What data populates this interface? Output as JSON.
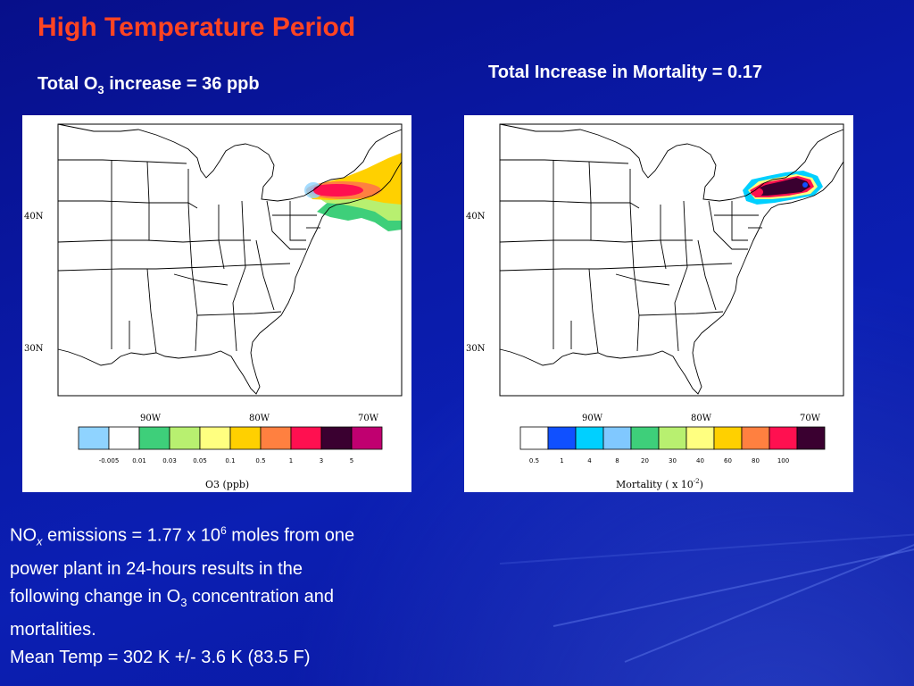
{
  "slide": {
    "title": "High Temperature Period",
    "left_heading": {
      "text": "Total O",
      "sub": "3",
      "rest": " increase = 36 ppb"
    },
    "right_heading": "Total Increase in Mortality = 0.17",
    "body": {
      "line1": {
        "a": "NO",
        "b": "x",
        "c": " emissions = 1.77 x 10",
        "d": "6",
        "e": " moles from one"
      },
      "line2": "power plant in 24-hours results in the",
      "line3": {
        "a": "following change in O",
        "b": "3",
        "c": " concentration and"
      },
      "line4": "mortalities.",
      "line5": "Mean Temp = 302 K +/- 3.6 K  (83.5 F)"
    }
  },
  "maps": {
    "lat_labels": [
      "40N",
      "30N"
    ],
    "lon_labels": [
      "90W",
      "80W",
      "70W"
    ],
    "o3": {
      "colorbar_title": "O3 (ppb)",
      "levels": [
        "-0.005",
        "0.01",
        "0.03",
        "0.05",
        "0.1",
        "0.5",
        "1",
        "3",
        "5"
      ],
      "colors": [
        "#8fd3ff",
        "#ffffff",
        "#3ecf7a",
        "#b8f070",
        "#ffff80",
        "#ffd000",
        "#ff8040",
        "#ff1050",
        "#3a0030",
        "#c00070"
      ]
    },
    "mortality": {
      "colorbar_title_main": "Mortality ( x 10",
      "colorbar_title_exp": "-2",
      "colorbar_title_end": ")",
      "levels": [
        "0.5",
        "1",
        "4",
        "8",
        "20",
        "30",
        "40",
        "60",
        "80",
        "100"
      ],
      "colors": [
        "#ffffff",
        "#1050ff",
        "#00d0ff",
        "#80c8ff",
        "#3ecf7a",
        "#b8f070",
        "#ffff80",
        "#ffd000",
        "#ff8040",
        "#ff1050",
        "#3a0030"
      ]
    }
  }
}
